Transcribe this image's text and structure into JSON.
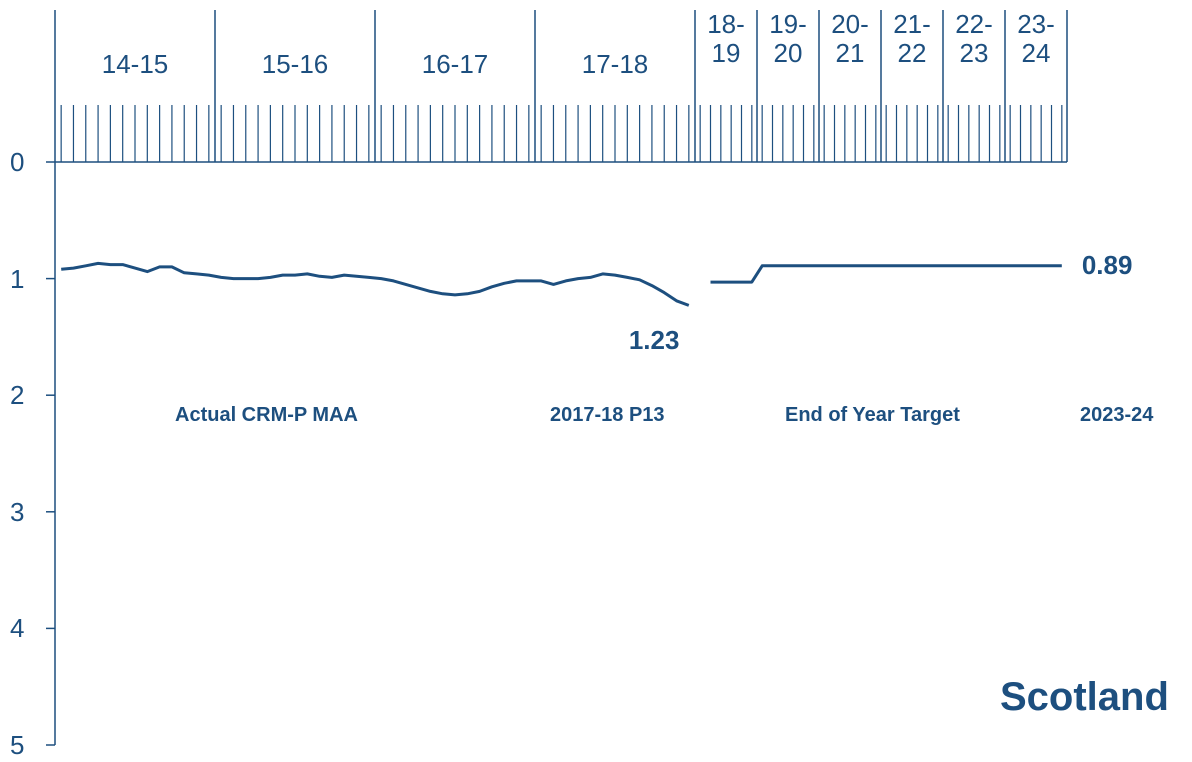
{
  "chart_data": {
    "type": "line",
    "title": "Scotland",
    "color": "#1d4f7f",
    "y_inverted": true,
    "ylim": [
      0,
      5
    ],
    "yticks": [
      0,
      1,
      2,
      3,
      4,
      5
    ],
    "bands": [
      {
        "label": "14-15",
        "ticks": 13
      },
      {
        "label": "15-16",
        "ticks": 13
      },
      {
        "label": "16-17",
        "ticks": 13
      },
      {
        "label": "17-18",
        "ticks": 13
      },
      {
        "label": "18-19",
        "ticks": 6
      },
      {
        "label": "19-20",
        "ticks": 6
      },
      {
        "label": "20-21",
        "ticks": 6
      },
      {
        "label": "21-22",
        "ticks": 6
      },
      {
        "label": "22-23",
        "ticks": 6
      },
      {
        "label": "23-24",
        "ticks": 6
      }
    ],
    "annotations": [
      "Actual CRM-P MAA",
      "2017-18 P13",
      "End of Year Target",
      "2023-24"
    ],
    "series": [
      {
        "x": [
          1,
          2,
          3,
          4,
          5,
          6,
          7,
          8,
          9,
          10,
          11,
          12,
          13,
          14,
          15,
          16,
          17,
          18,
          19,
          20,
          21,
          22,
          23,
          24,
          25,
          26,
          27,
          28,
          29,
          30,
          31,
          32,
          33,
          34,
          35,
          36,
          37,
          38,
          39,
          40,
          41,
          42,
          43,
          44,
          45,
          46,
          47,
          48,
          49,
          50,
          51,
          52
        ],
        "values": [
          0.92,
          0.91,
          0.89,
          0.87,
          0.88,
          0.88,
          0.91,
          0.94,
          0.9,
          0.9,
          0.95,
          0.96,
          0.97,
          0.99,
          1.0,
          1.0,
          1.0,
          0.99,
          0.97,
          0.97,
          0.96,
          0.98,
          0.99,
          0.97,
          0.98,
          0.99,
          1.0,
          1.02,
          1.05,
          1.08,
          1.11,
          1.13,
          1.14,
          1.13,
          1.11,
          1.07,
          1.04,
          1.02,
          1.02,
          1.02,
          1.05,
          1.02,
          1.0,
          0.99,
          0.96,
          0.97,
          0.99,
          1.01,
          1.06,
          1.12,
          1.19,
          1.23
        ]
      },
      {
        "x": [
          54,
          58,
          59,
          88
        ],
        "values": [
          1.03,
          1.03,
          0.89,
          0.89
        ]
      }
    ]
  }
}
